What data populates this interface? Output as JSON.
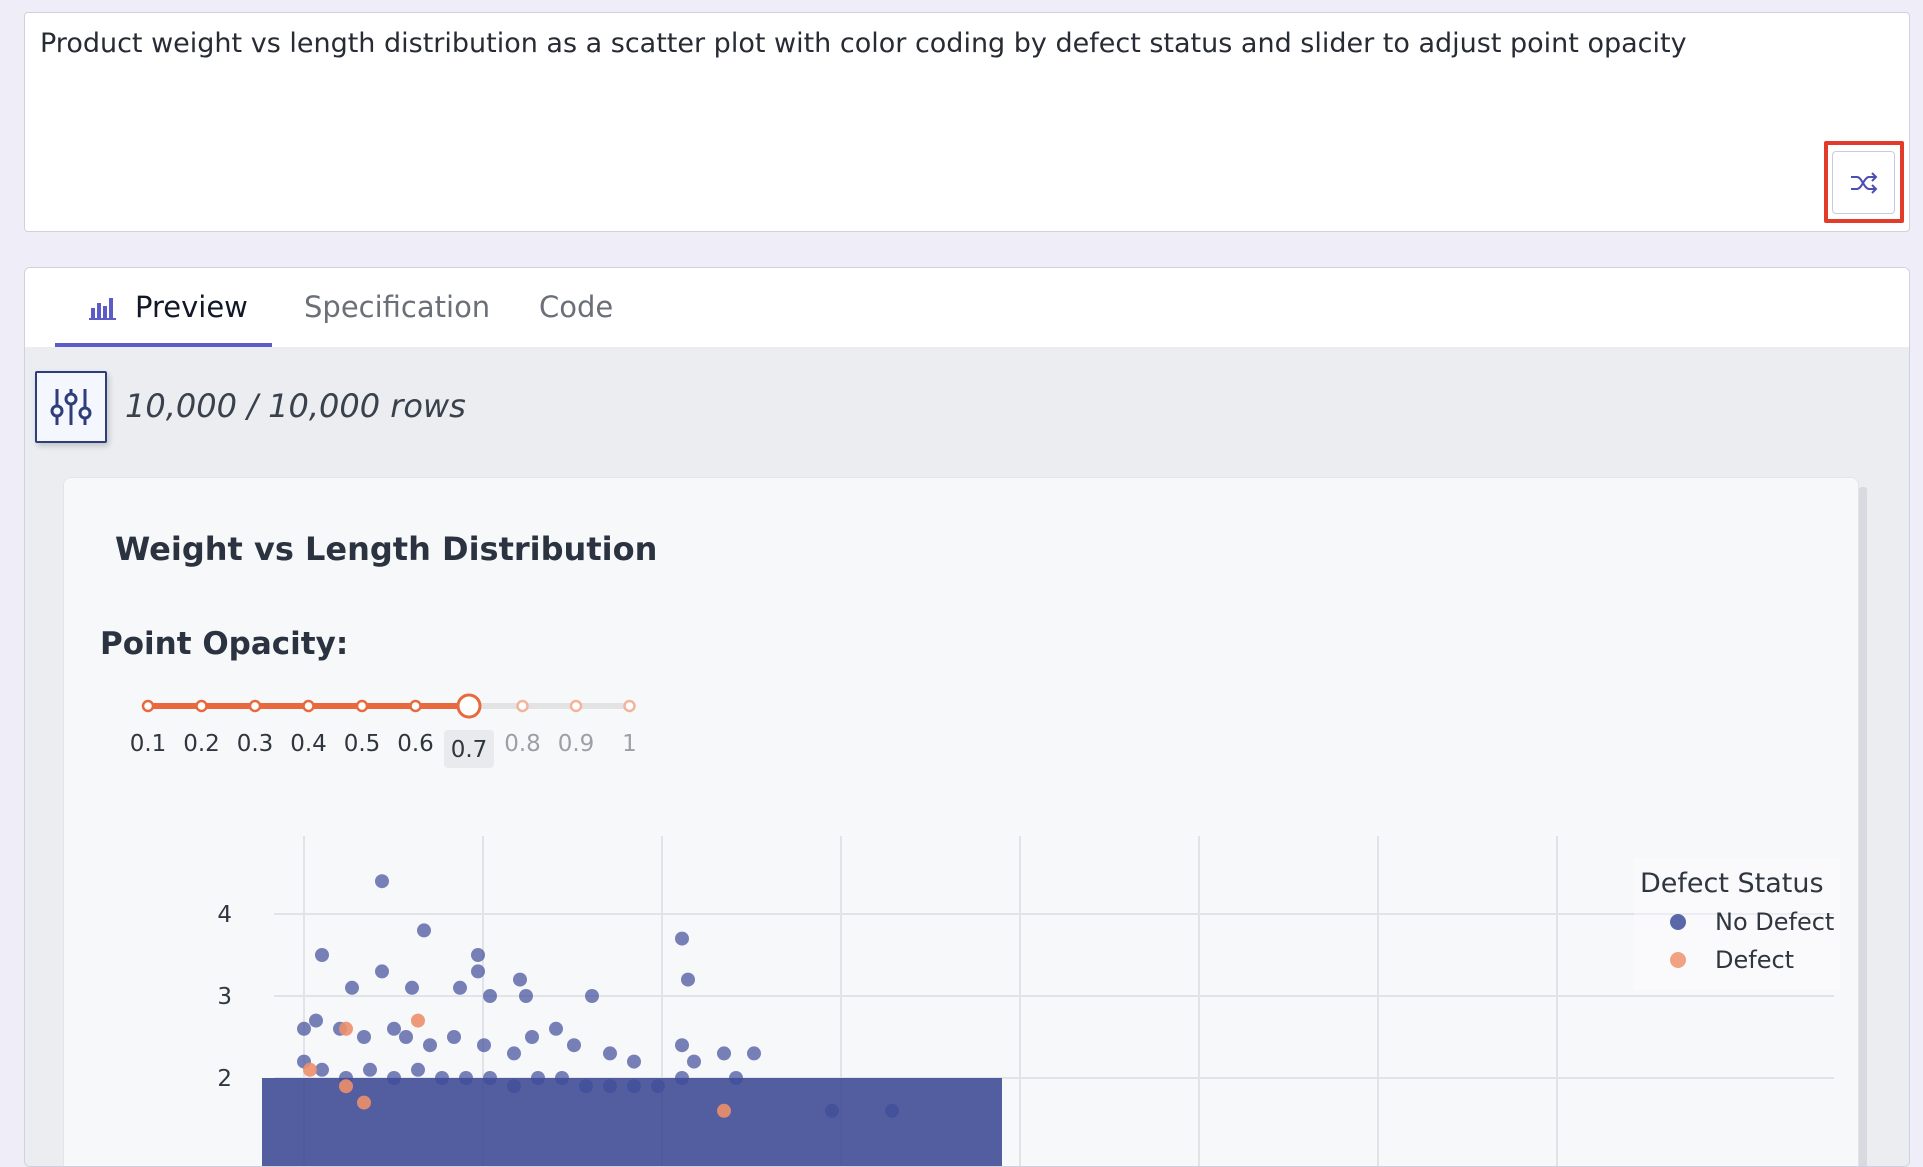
{
  "prompt": {
    "text": "Product weight vs length distribution as a scatter plot with color coding by defect status and slider to adjust point opacity"
  },
  "shuffle_button": {
    "icon": "shuffle-icon"
  },
  "tabs": [
    {
      "label": "Preview",
      "icon": "bar-chart-icon",
      "active": true
    },
    {
      "label": "Specification",
      "active": false
    },
    {
      "label": "Code",
      "active": false
    }
  ],
  "filter_button": {
    "icon": "sliders-icon"
  },
  "rows_count": "10,000 / 10,000 rows",
  "chart": {
    "title": "Weight vs Length Distribution",
    "opacity_label": "Point Opacity:",
    "slider": {
      "ticks": [
        "0.1",
        "0.2",
        "0.3",
        "0.4",
        "0.5",
        "0.6",
        "0.7",
        "0.8",
        "0.9",
        "1"
      ],
      "selected": "0.7"
    }
  },
  "legend": {
    "title": "Defect Status",
    "items": [
      {
        "label": "No Defect",
        "color": "#5a67a8"
      },
      {
        "label": "Defect",
        "color": "#f0a283"
      }
    ]
  },
  "colors": {
    "accent": "#5b5cc8",
    "slider": "#e8693d",
    "no_defect": "#3e4d9a",
    "defect": "#ec8f6c"
  },
  "chart_data": {
    "type": "scatter",
    "y_ticks": [
      "4",
      "3",
      "2"
    ],
    "series": [
      {
        "name": "No Defect",
        "points": [
          [
            0.8,
            3.5
          ],
          [
            1.8,
            4.4
          ],
          [
            2.5,
            3.8
          ],
          [
            3.4,
            3.5
          ],
          [
            3.4,
            3.3
          ],
          [
            1.8,
            3.3
          ],
          [
            2.3,
            3.1
          ],
          [
            1.3,
            3.1
          ],
          [
            3.1,
            3.1
          ],
          [
            4.1,
            3.2
          ],
          [
            4.2,
            3.0
          ],
          [
            3.6,
            3.0
          ],
          [
            5.3,
            3.0
          ],
          [
            6.8,
            3.7
          ],
          [
            6.9,
            3.2
          ],
          [
            0.5,
            2.6
          ],
          [
            0.7,
            2.7
          ],
          [
            1.1,
            2.6
          ],
          [
            1.5,
            2.5
          ],
          [
            2.0,
            2.6
          ],
          [
            2.2,
            2.5
          ],
          [
            2.6,
            2.4
          ],
          [
            3.0,
            2.5
          ],
          [
            3.5,
            2.4
          ],
          [
            4.0,
            2.3
          ],
          [
            4.3,
            2.5
          ],
          [
            4.7,
            2.6
          ],
          [
            5.0,
            2.4
          ],
          [
            5.6,
            2.3
          ],
          [
            6.0,
            2.2
          ],
          [
            6.8,
            2.4
          ],
          [
            7.0,
            2.2
          ],
          [
            7.5,
            2.3
          ],
          [
            7.7,
            2.0
          ],
          [
            8.0,
            2.3
          ],
          [
            0.5,
            2.2
          ],
          [
            0.8,
            2.1
          ],
          [
            1.2,
            2.0
          ],
          [
            1.6,
            2.1
          ],
          [
            2.0,
            2.0
          ],
          [
            2.4,
            2.1
          ],
          [
            2.8,
            2.0
          ],
          [
            3.2,
            2.0
          ],
          [
            3.6,
            2.0
          ],
          [
            4.0,
            1.9
          ],
          [
            4.4,
            2.0
          ],
          [
            4.8,
            2.0
          ],
          [
            5.2,
            1.9
          ],
          [
            5.6,
            1.9
          ],
          [
            6.0,
            1.9
          ],
          [
            6.4,
            1.9
          ],
          [
            6.8,
            2.0
          ],
          [
            10.3,
            1.6
          ],
          [
            9.3,
            1.6
          ]
        ]
      },
      {
        "name": "Defect",
        "points": [
          [
            1.2,
            2.6
          ],
          [
            0.6,
            2.1
          ],
          [
            2.4,
            2.7
          ],
          [
            1.2,
            1.9
          ],
          [
            1.5,
            1.7
          ],
          [
            7.5,
            1.6
          ]
        ]
      }
    ]
  }
}
